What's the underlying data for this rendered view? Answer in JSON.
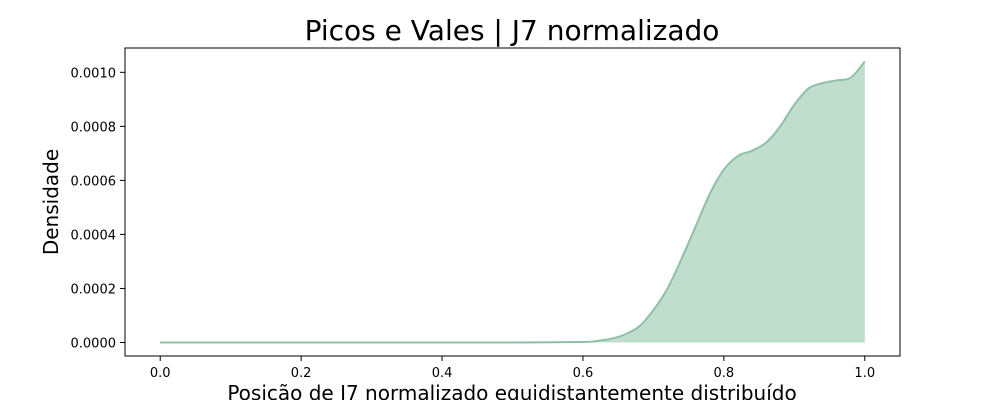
{
  "chart_data": {
    "type": "area",
    "title": "Picos e Vales | J7 normalizado",
    "xlabel": "Posição de J7 normalizado equidistantemente distribuído",
    "ylabel": "Densidade",
    "xlim": [
      -0.05,
      1.05
    ],
    "ylim": [
      -5e-05,
      0.00109
    ],
    "xticks": [
      0.0,
      0.2,
      0.4,
      0.6,
      0.8,
      1.0
    ],
    "xtick_labels": [
      "0.0",
      "0.2",
      "0.4",
      "0.6",
      "0.8",
      "1.0"
    ],
    "yticks": [
      0.0,
      0.0002,
      0.0004,
      0.0006,
      0.0008,
      0.001
    ],
    "ytick_labels": [
      "0.0000",
      "0.0002",
      "0.0004",
      "0.0006",
      "0.0008",
      "0.0010"
    ],
    "grid": false,
    "colors": {
      "fill": "#c1ddcd",
      "line": "#8fc0a6",
      "axis": "#000000"
    },
    "series": [
      {
        "x": [
          0.0,
          0.1,
          0.2,
          0.3,
          0.4,
          0.5,
          0.6,
          0.62,
          0.64,
          0.66,
          0.68,
          0.7,
          0.72,
          0.74,
          0.76,
          0.78,
          0.8,
          0.82,
          0.84,
          0.86,
          0.88,
          0.9,
          0.92,
          0.94,
          0.96,
          0.98,
          1.0
        ],
        "values": [
          0.0,
          0.0,
          0.0,
          0.0,
          0.0,
          0.0,
          2e-06,
          6e-06,
          1.4e-05,
          3e-05,
          6e-05,
          0.00012,
          0.0002,
          0.00031,
          0.00043,
          0.00055,
          0.00064,
          0.00069,
          0.00071,
          0.00074,
          0.0008,
          0.00088,
          0.00094,
          0.00096,
          0.00097,
          0.00098,
          0.00104
        ]
      }
    ]
  }
}
